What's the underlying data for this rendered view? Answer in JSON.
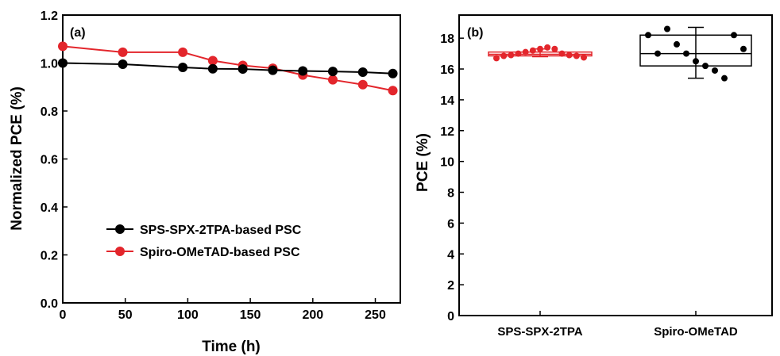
{
  "chart_data": [
    {
      "type": "line",
      "panel_label": "(a)",
      "xlabel": "Time (h)",
      "ylabel": "Normalized PCE (%)",
      "xlim": [
        0,
        270
      ],
      "ylim": [
        0.0,
        1.2
      ],
      "xticks": [
        0,
        50,
        100,
        150,
        200,
        250
      ],
      "yticks": [
        0.0,
        0.2,
        0.4,
        0.6,
        0.8,
        1.0,
        1.2
      ],
      "ytick_labels": [
        "0.0",
        "0.2",
        "0.4",
        "0.6",
        "0.8",
        "1.0",
        "1.2"
      ],
      "legend_position": "lower-left",
      "series": [
        {
          "name": "SPS-SPX-2TPA-based PSC",
          "color": "#000000",
          "x": [
            0,
            48,
            96,
            120,
            144,
            168,
            192,
            216,
            240,
            264
          ],
          "y": [
            1.0,
            0.995,
            0.982,
            0.976,
            0.975,
            0.97,
            0.967,
            0.965,
            0.962,
            0.956
          ]
        },
        {
          "name": "Spiro-OMeTAD-based PSC",
          "color": "#e3262c",
          "x": [
            0,
            48,
            96,
            120,
            144,
            168,
            192,
            216,
            240,
            264
          ],
          "y": [
            1.07,
            1.045,
            1.045,
            1.01,
            0.99,
            0.978,
            0.95,
            0.93,
            0.91,
            0.885
          ]
        }
      ]
    },
    {
      "type": "box",
      "panel_label": "(b)",
      "ylabel": "PCE (%)",
      "ylim": [
        0,
        19.5
      ],
      "yticks": [
        0,
        2,
        4,
        6,
        8,
        10,
        12,
        14,
        16,
        18
      ],
      "categories": [
        "SPS-SPX-2TPA",
        "Spiro-OMeTAD"
      ],
      "boxes": [
        {
          "category": "SPS-SPX-2TPA",
          "color": "#e3262c",
          "q1": 16.85,
          "median": 16.95,
          "q3": 17.1,
          "whisker_low": 16.8,
          "whisker_high": 17.3,
          "points": [
            16.7,
            16.85,
            16.9,
            17.0,
            17.1,
            17.2,
            17.3,
            17.4,
            17.3,
            17.0,
            16.9,
            16.85,
            16.75
          ]
        },
        {
          "category": "Spiro-OMeTAD",
          "color": "#000000",
          "q1": 16.2,
          "median": 17.0,
          "q3": 18.2,
          "whisker_low": 15.4,
          "whisker_high": 18.7,
          "points": [
            18.2,
            17.0,
            18.6,
            17.6,
            17.0,
            16.5,
            16.2,
            15.9,
            15.4,
            18.2,
            17.3
          ]
        }
      ]
    }
  ]
}
